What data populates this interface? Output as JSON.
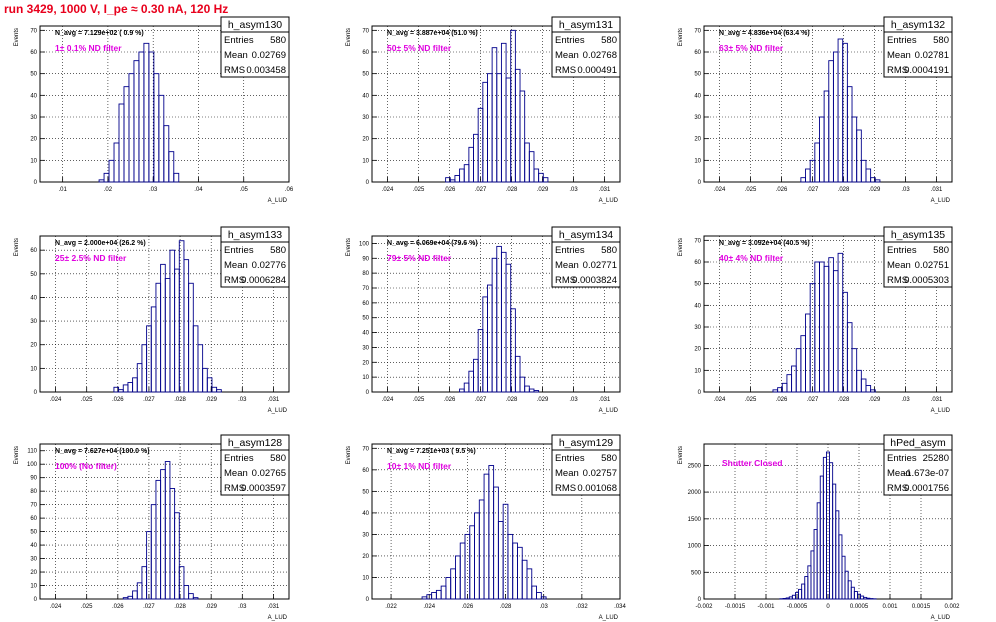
{
  "title": "run 3429,  1000 V, I_pe ≈ 0.30 nA, 120 Hz",
  "colors": {
    "title": "#e8001c",
    "annotation": "#e000e0",
    "hist": "#00008b",
    "axis": "#000000"
  },
  "chart_data": [
    {
      "type": "bar",
      "name": "h_asym130",
      "stat": {
        "Entries": "580",
        "Mean": "0.02769",
        "RMS": "0.003458"
      },
      "navg": "N_avg = 7.129e+02 ( 0.9 %)",
      "filter": "1± 0.1% ND filter",
      "ylabel": "Events",
      "xlabel": "A_LUD",
      "xlim": [
        0.005,
        0.06
      ],
      "ylim": [
        0,
        72
      ],
      "xticks": [
        0.01,
        0.02,
        0.03,
        0.04,
        0.05,
        0.06
      ],
      "yticks": [
        0,
        10,
        20,
        30,
        40,
        50,
        60,
        70
      ],
      "binwidth": 0.0011,
      "x": [
        0.0186,
        0.0197,
        0.0208,
        0.0219,
        0.023,
        0.0241,
        0.0252,
        0.0263,
        0.0274,
        0.0285,
        0.0296,
        0.0307,
        0.0318,
        0.0329,
        0.034,
        0.0351
      ],
      "values": [
        1,
        4,
        10,
        18,
        36,
        44,
        50,
        56,
        60,
        64,
        60,
        50,
        40,
        26,
        14,
        4
      ]
    },
    {
      "type": "bar",
      "name": "h_asym131",
      "stat": {
        "Entries": "580",
        "Mean": "0.02768",
        "RMS": "0.000491"
      },
      "navg": "N_avg = 3.887e+04 (51.0 %)",
      "filter": "50± 5% ND filter",
      "ylabel": "Events",
      "xlabel": "A_LUD",
      "xlim": [
        0.0235,
        0.0315
      ],
      "ylim": [
        0,
        72
      ],
      "xticks": [
        0.024,
        0.025,
        0.026,
        0.027,
        0.028,
        0.029,
        0.03,
        0.031
      ],
      "yticks": [
        0,
        10,
        20,
        30,
        40,
        50,
        60,
        70
      ],
      "binwidth": 0.00015,
      "x": [
        0.02595,
        0.0261,
        0.02625,
        0.0264,
        0.02655,
        0.0267,
        0.02685,
        0.027,
        0.02715,
        0.0273,
        0.02745,
        0.0276,
        0.02775,
        0.0279,
        0.02805,
        0.0282,
        0.02835,
        0.0285,
        0.02865,
        0.0288,
        0.02895,
        0.0291
      ],
      "values": [
        2,
        1,
        3,
        6,
        8,
        16,
        22,
        34,
        46,
        50,
        62,
        50,
        64,
        48,
        70,
        52,
        42,
        18,
        14,
        6,
        4,
        2
      ]
    },
    {
      "type": "bar",
      "name": "h_asym132",
      "stat": {
        "Entries": "580",
        "Mean": "0.02781",
        "RMS": "0.0004191"
      },
      "navg": "N_avg = 4.836e+04 (63.4 %)",
      "filter": "63± 5% ND filter",
      "ylabel": "Events",
      "xlabel": "A_LUD",
      "xlim": [
        0.0235,
        0.0315
      ],
      "ylim": [
        0,
        72
      ],
      "xticks": [
        0.024,
        0.025,
        0.026,
        0.027,
        0.028,
        0.029,
        0.03,
        0.031
      ],
      "yticks": [
        0,
        10,
        20,
        30,
        40,
        50,
        60,
        70
      ],
      "binwidth": 0.00015,
      "x": [
        0.0267,
        0.02685,
        0.027,
        0.02715,
        0.0273,
        0.02745,
        0.0276,
        0.02775,
        0.0279,
        0.02805,
        0.0282,
        0.02835,
        0.0285,
        0.02865,
        0.0288,
        0.02895,
        0.0291
      ],
      "values": [
        2,
        6,
        10,
        18,
        30,
        42,
        56,
        60,
        66,
        64,
        44,
        30,
        24,
        10,
        6,
        2,
        1
      ]
    },
    {
      "type": "bar",
      "name": "h_asym133",
      "stat": {
        "Entries": "580",
        "Mean": "0.02776",
        "RMS": "0.0006284"
      },
      "navg": "N_avg = 2.000e+04 (26.2 %)",
      "filter": "25± 2.5% ND filter",
      "ylabel": "Events",
      "xlabel": "A_LUD",
      "xlim": [
        0.0235,
        0.0315
      ],
      "ylim": [
        0,
        66
      ],
      "xticks": [
        0.024,
        0.025,
        0.026,
        0.027,
        0.028,
        0.029,
        0.03,
        0.031
      ],
      "yticks": [
        0,
        10,
        20,
        30,
        40,
        50,
        60
      ],
      "binwidth": 0.00015,
      "x": [
        0.02595,
        0.0261,
        0.02625,
        0.0264,
        0.02655,
        0.0267,
        0.02685,
        0.027,
        0.02715,
        0.0273,
        0.02745,
        0.0276,
        0.02775,
        0.0279,
        0.02805,
        0.0282,
        0.02835,
        0.0285,
        0.02865,
        0.0288,
        0.02895,
        0.0291,
        0.02925
      ],
      "values": [
        2,
        1,
        3,
        4,
        6,
        12,
        20,
        28,
        36,
        46,
        54,
        48,
        60,
        52,
        64,
        56,
        46,
        28,
        20,
        10,
        6,
        2,
        1
      ]
    },
    {
      "type": "bar",
      "name": "h_asym134",
      "stat": {
        "Entries": "580",
        "Mean": "0.02771",
        "RMS": "0.0003824"
      },
      "navg": "N_avg = 6.069e+04 (79.6 %)",
      "filter": "79± 5% ND filter",
      "ylabel": "Events",
      "xlabel": "A_LUD",
      "xlim": [
        0.0235,
        0.0315
      ],
      "ylim": [
        0,
        105
      ],
      "xticks": [
        0.024,
        0.025,
        0.026,
        0.027,
        0.028,
        0.029,
        0.03,
        0.031
      ],
      "yticks": [
        0,
        10,
        20,
        30,
        40,
        50,
        60,
        70,
        80,
        90,
        100
      ],
      "binwidth": 0.00015,
      "x": [
        0.0264,
        0.02655,
        0.0267,
        0.02685,
        0.027,
        0.02715,
        0.0273,
        0.02745,
        0.0276,
        0.02775,
        0.0279,
        0.02805,
        0.0282,
        0.02835,
        0.0285,
        0.02865,
        0.0288
      ],
      "values": [
        2,
        6,
        14,
        22,
        42,
        64,
        72,
        90,
        98,
        94,
        86,
        56,
        24,
        10,
        4,
        2,
        1
      ]
    },
    {
      "type": "bar",
      "name": "h_asym135",
      "stat": {
        "Entries": "580",
        "Mean": "0.02751",
        "RMS": "0.0005303"
      },
      "navg": "N_avg = 3.092e+04 (40.5 %)",
      "filter": "40± 4% ND filter",
      "ylabel": "Events",
      "xlabel": "A_LUD",
      "xlim": [
        0.0235,
        0.0315
      ],
      "ylim": [
        0,
        72
      ],
      "xticks": [
        0.024,
        0.025,
        0.026,
        0.027,
        0.028,
        0.029,
        0.03,
        0.031
      ],
      "yticks": [
        0,
        10,
        20,
        30,
        40,
        50,
        60,
        70
      ],
      "binwidth": 0.00015,
      "x": [
        0.0258,
        0.02595,
        0.0261,
        0.02625,
        0.0264,
        0.02655,
        0.0267,
        0.02685,
        0.027,
        0.02715,
        0.0273,
        0.02745,
        0.0276,
        0.02775,
        0.0279,
        0.02805,
        0.0282,
        0.02835,
        0.0285,
        0.02865,
        0.0288,
        0.02895
      ],
      "values": [
        1,
        2,
        4,
        8,
        12,
        20,
        26,
        36,
        50,
        60,
        60,
        58,
        62,
        56,
        64,
        46,
        32,
        20,
        10,
        6,
        3,
        1
      ]
    },
    {
      "type": "bar",
      "name": "h_asym128",
      "stat": {
        "Entries": "580",
        "Mean": "0.02765",
        "RMS": "0.0003597"
      },
      "navg": "N_avg = 7.627e+04 (100.0 %)",
      "filter": "100% (No filter)",
      "ylabel": "Events",
      "xlabel": "A_LUD",
      "xlim": [
        0.0235,
        0.0315
      ],
      "ylim": [
        0,
        115
      ],
      "xticks": [
        0.024,
        0.025,
        0.026,
        0.027,
        0.028,
        0.029,
        0.03,
        0.031
      ],
      "yticks": [
        0,
        10,
        20,
        30,
        40,
        50,
        60,
        70,
        80,
        90,
        100,
        110
      ],
      "binwidth": 0.00015,
      "x": [
        0.02625,
        0.0264,
        0.02655,
        0.0267,
        0.02685,
        0.027,
        0.02715,
        0.0273,
        0.02745,
        0.0276,
        0.02775,
        0.0279,
        0.02805,
        0.0282,
        0.02835,
        0.0285
      ],
      "values": [
        1,
        2,
        6,
        12,
        24,
        50,
        70,
        88,
        96,
        102,
        82,
        64,
        24,
        10,
        4,
        1
      ]
    },
    {
      "type": "bar",
      "name": "h_asym129",
      "stat": {
        "Entries": "580",
        "Mean": "0.02757",
        "RMS": "0.001068"
      },
      "navg": "N_avg = 7.251e+03 ( 9.5 %)",
      "filter": "10± 1% ND filter",
      "ylabel": "Events",
      "xlabel": "A_LUD",
      "xlim": [
        0.021,
        0.034
      ],
      "ylim": [
        0,
        72
      ],
      "xticks": [
        0.022,
        0.024,
        0.026,
        0.028,
        0.03,
        0.032,
        0.034
      ],
      "yticks": [
        0,
        10,
        20,
        30,
        40,
        50,
        60,
        70
      ],
      "binwidth": 0.00025,
      "x": [
        0.02375,
        0.024,
        0.02425,
        0.0245,
        0.02475,
        0.025,
        0.02525,
        0.0255,
        0.02575,
        0.026,
        0.02625,
        0.0265,
        0.02675,
        0.027,
        0.02725,
        0.0275,
        0.02775,
        0.028,
        0.02825,
        0.0285,
        0.02875,
        0.029,
        0.02925,
        0.0295,
        0.02975,
        0.03
      ],
      "values": [
        1,
        2,
        3,
        4,
        6,
        10,
        14,
        20,
        26,
        30,
        34,
        40,
        46,
        58,
        62,
        52,
        36,
        44,
        30,
        26,
        24,
        18,
        14,
        6,
        3,
        1
      ]
    },
    {
      "type": "bar",
      "name": "hPed_asym",
      "stat": {
        "Entries": "25280",
        "Mean": "-1.673e-07",
        "RMS": "0.0001756"
      },
      "navg": "",
      "filter": "Shutter Closed",
      "ylabel": "Events",
      "xlabel": "A_LUD",
      "xlim": [
        -0.002,
        0.002
      ],
      "ylim": [
        0,
        2900
      ],
      "xticks": [
        -0.002,
        -0.0015,
        -0.001,
        -0.0005,
        0,
        0.0005,
        0.001,
        0.0015,
        0.002
      ],
      "xticklabels": [
        "-0.002",
        "-0.0015",
        "-0.001",
        "-0.0005",
        "0",
        "0.0005",
        "0.001",
        "0.0015",
        "0.002"
      ],
      "yticks": [
        0,
        500,
        1000,
        1500,
        2000,
        2500
      ],
      "binwidth": 5e-05,
      "x": [
        -0.00075,
        -0.0007,
        -0.00065,
        -0.0006,
        -0.00055,
        -0.0005,
        -0.00045,
        -0.0004,
        -0.00035,
        -0.0003,
        -0.00025,
        -0.0002,
        -0.00015,
        -0.0001,
        -5e-05,
        0,
        5e-05,
        0.0001,
        0.00015,
        0.0002,
        0.00025,
        0.0003,
        0.00035,
        0.0004,
        0.00045,
        0.0005,
        0.00055,
        0.0006,
        0.00065,
        0.0007,
        0.00075
      ],
      "values": [
        5,
        10,
        20,
        40,
        70,
        120,
        180,
        280,
        420,
        620,
        900,
        1300,
        1800,
        2300,
        2650,
        2750,
        2550,
        2150,
        1650,
        1200,
        800,
        520,
        340,
        220,
        140,
        90,
        55,
        30,
        15,
        8,
        4
      ]
    }
  ]
}
